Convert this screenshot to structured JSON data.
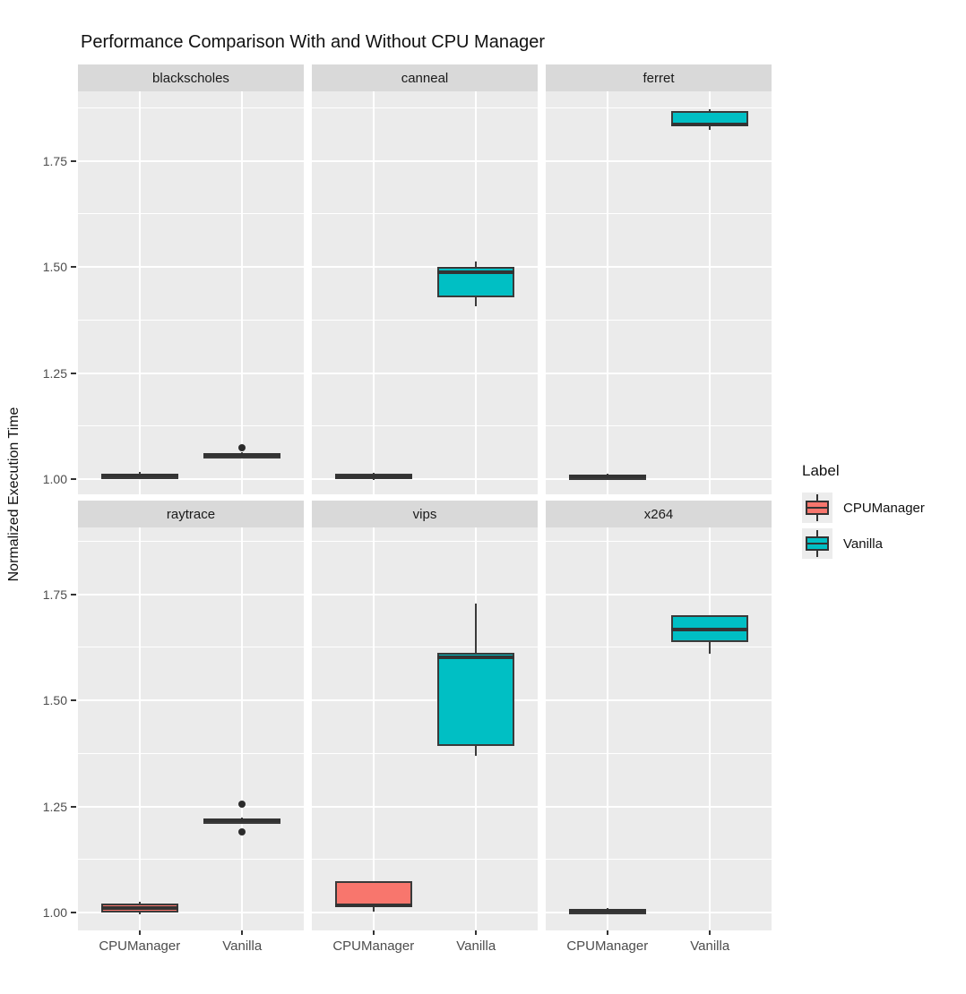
{
  "chart_data": {
    "type": "boxplot",
    "title": "Performance Comparison With and Without CPU Manager",
    "ylabel": "Normalized Execution Time",
    "xlabel": "",
    "x_categories": [
      "CPUManager",
      "Vanilla"
    ],
    "y_ticks": [
      1.0,
      1.25,
      1.5,
      1.75
    ],
    "y_minor_gridlines": [
      1.125,
      1.375,
      1.625,
      1.875
    ],
    "y_domain": [
      0.957,
      1.91
    ],
    "grid": true,
    "facet_layout": {
      "rows": 2,
      "cols": 3
    },
    "legend_position": "right",
    "panel_bg": "#EBEBEB",
    "strip_bg": "#D9D9D9",
    "box_outline": "#3A3A3A",
    "legend": {
      "title": "Label",
      "entries": [
        {
          "label": "CPUManager",
          "color": "#F8766D"
        },
        {
          "label": "Vanilla",
          "color": "#00BFC4"
        }
      ]
    },
    "facets": [
      {
        "label": "blackscholes",
        "boxes": [
          {
            "group": "CPUManager",
            "min": 1.0,
            "q1": 1.003,
            "median": 1.008,
            "q3": 1.013,
            "max": 1.016,
            "outliers": []
          },
          {
            "group": "Vanilla",
            "min": 1.052,
            "q1": 1.055,
            "median": 1.058,
            "q3": 1.061,
            "max": 1.064,
            "outliers": [
              1.073
            ]
          }
        ]
      },
      {
        "label": "canneal",
        "boxes": [
          {
            "group": "CPUManager",
            "min": 0.998,
            "q1": 1.0,
            "median": 1.006,
            "q3": 1.012,
            "max": 1.014,
            "outliers": []
          },
          {
            "group": "Vanilla",
            "min": 1.408,
            "q1": 1.428,
            "median": 1.487,
            "q3": 1.5,
            "max": 1.513,
            "outliers": []
          }
        ]
      },
      {
        "label": "ferret",
        "boxes": [
          {
            "group": "CPUManager",
            "min": 1.0,
            "q1": 1.002,
            "median": 1.006,
            "q3": 1.01,
            "max": 1.012,
            "outliers": []
          },
          {
            "group": "Vanilla",
            "min": 1.822,
            "q1": 1.831,
            "median": 1.836,
            "q3": 1.868,
            "max": 1.872,
            "outliers": []
          }
        ]
      },
      {
        "label": "raytrace",
        "boxes": [
          {
            "group": "CPUManager",
            "min": 0.996,
            "q1": 1.0,
            "median": 1.01,
            "q3": 1.022,
            "max": 1.025,
            "outliers": []
          },
          {
            "group": "Vanilla",
            "min": 1.212,
            "q1": 1.214,
            "median": 1.218,
            "q3": 1.222,
            "max": 1.224,
            "outliers": [
              1.255,
              1.19
            ]
          }
        ]
      },
      {
        "label": "vips",
        "boxes": [
          {
            "group": "CPUManager",
            "min": 1.003,
            "q1": 1.013,
            "median": 1.016,
            "q3": 1.073,
            "max": 1.073,
            "outliers": []
          },
          {
            "group": "Vanilla",
            "min": 1.37,
            "q1": 1.392,
            "median": 1.601,
            "q3": 1.612,
            "max": 1.727,
            "outliers": []
          }
        ]
      },
      {
        "label": "x264",
        "boxes": [
          {
            "group": "CPUManager",
            "min": 0.998,
            "q1": 1.001,
            "median": 1.005,
            "q3": 1.009,
            "max": 1.011,
            "outliers": []
          },
          {
            "group": "Vanilla",
            "min": 1.61,
            "q1": 1.638,
            "median": 1.666,
            "q3": 1.7,
            "max": 1.7,
            "outliers": []
          }
        ]
      }
    ]
  }
}
